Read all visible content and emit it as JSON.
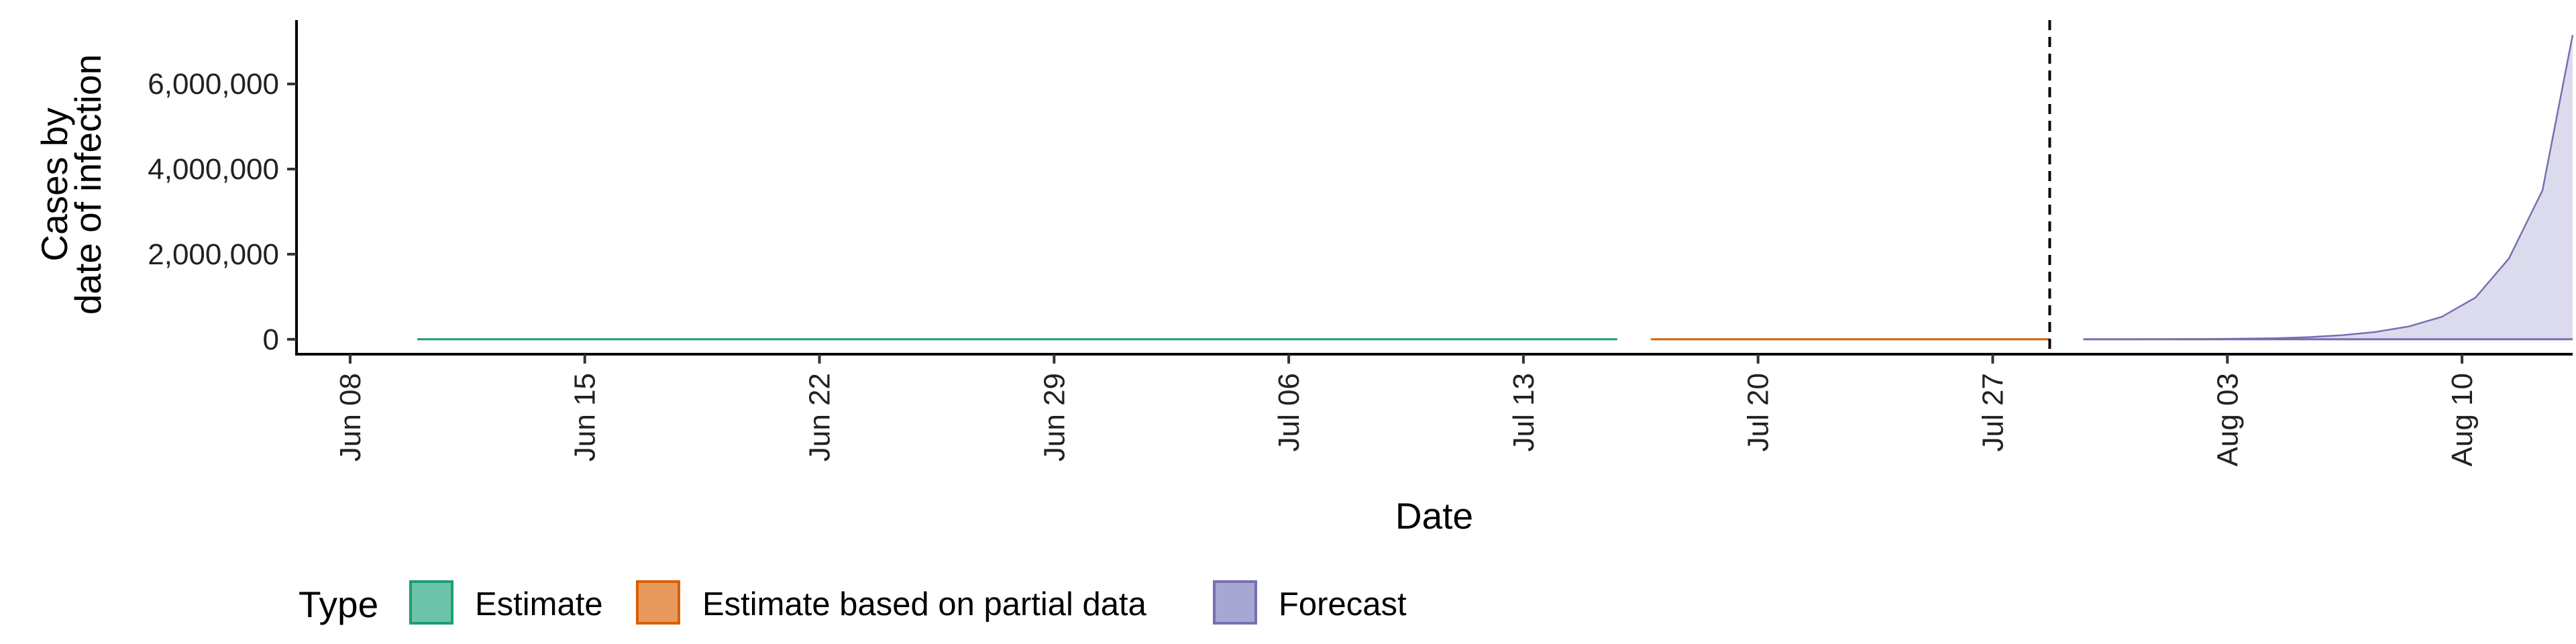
{
  "chart_data": {
    "type": "area",
    "xlabel": "Date",
    "ylabel_lines": [
      "Cases by",
      "date of infection"
    ],
    "x_ticks": [
      {
        "label": "Jun 08",
        "day": 0
      },
      {
        "label": "Jun 15",
        "day": 7
      },
      {
        "label": "Jun 22",
        "day": 14
      },
      {
        "label": "Jun 29",
        "day": 21
      },
      {
        "label": "Jul 06",
        "day": 28
      },
      {
        "label": "Jul 13",
        "day": 35
      },
      {
        "label": "Jul 20",
        "day": 42
      },
      {
        "label": "Jul 27",
        "day": 49
      },
      {
        "label": "Aug 03",
        "day": 56
      },
      {
        "label": "Aug 10",
        "day": 63
      }
    ],
    "x_range_days": [
      -1.6,
      66.3
    ],
    "y_ticks": [
      {
        "label": "0",
        "value": 0
      },
      {
        "label": "2,000,000",
        "value": 2000000
      },
      {
        "label": "4,000,000",
        "value": 4000000
      },
      {
        "label": "6,000,000",
        "value": 6000000
      }
    ],
    "ylim": [
      -350000,
      7500000
    ],
    "vline_day": 50.7,
    "series": [
      {
        "name": "Estimate",
        "day_start": 2,
        "day_end": 37.8,
        "value": 0
      },
      {
        "name": "Estimate based on partial data",
        "day_start": 38.8,
        "day_end": 50.7,
        "value": 0
      },
      {
        "name": "Forecast",
        "points": [
          [
            51.7,
            0
          ],
          [
            53.6,
            2000
          ],
          [
            55.5,
            8000
          ],
          [
            57.4,
            25000
          ],
          [
            58.4,
            50000
          ],
          [
            59.4,
            95000
          ],
          [
            60.4,
            170000
          ],
          [
            61.4,
            300000
          ],
          [
            62.4,
            530000
          ],
          [
            63.4,
            980000
          ],
          [
            64.4,
            1900000
          ],
          [
            65.4,
            3500000
          ],
          [
            66.3,
            7150000
          ]
        ]
      }
    ],
    "legend": {
      "title": "Type",
      "position": "bottom-left",
      "items": [
        {
          "label": "Estimate",
          "fill": "#6dc3a9",
          "stroke": "#1b9e77"
        },
        {
          "label": "Estimate based on partial data",
          "fill": "#e89a5d",
          "stroke": "#d95f02"
        },
        {
          "label": "Forecast",
          "fill": "#a8a6d3",
          "stroke": "#7570b3"
        }
      ]
    },
    "colors": {
      "estimate": "#1b9e77",
      "partial": "#d95f02",
      "forecast_line": "#7570b3",
      "forecast_fill": "#dcdbed"
    }
  }
}
